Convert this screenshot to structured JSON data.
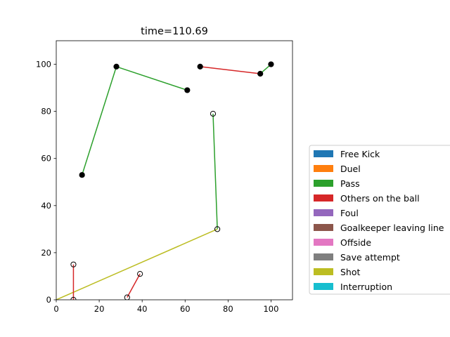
{
  "chart_data": {
    "type": "scatter",
    "title": "time=110.69",
    "xlabel": "",
    "ylabel": "",
    "xlim": [
      0,
      110
    ],
    "ylim": [
      0,
      110
    ],
    "xticks": [
      0,
      20,
      40,
      60,
      80,
      100
    ],
    "yticks": [
      0,
      20,
      40,
      60,
      80,
      100
    ],
    "grid": false,
    "legend_placement": "outside-right",
    "legend": [
      {
        "label": "Free Kick",
        "color": "#1f77b4"
      },
      {
        "label": "Duel",
        "color": "#ff7f0e"
      },
      {
        "label": "Pass",
        "color": "#2ca02c"
      },
      {
        "label": "Others on the ball",
        "color": "#d62728"
      },
      {
        "label": "Foul",
        "color": "#9467bd"
      },
      {
        "label": "Goalkeeper leaving line",
        "color": "#8c564b"
      },
      {
        "label": "Offside",
        "color": "#e377c2"
      },
      {
        "label": "Save attempt",
        "color": "#7f7f7f"
      },
      {
        "label": "Shot",
        "color": "#bcbd22"
      },
      {
        "label": "Interruption",
        "color": "#17becf"
      }
    ],
    "segments": [
      {
        "event": "Pass",
        "color": "#2ca02c",
        "from": [
          12,
          53
        ],
        "to": [
          28,
          99
        ]
      },
      {
        "event": "Pass",
        "color": "#2ca02c",
        "from": [
          28,
          99
        ],
        "to": [
          61,
          89
        ]
      },
      {
        "event": "Others on the ball",
        "color": "#d62728",
        "from": [
          67,
          99
        ],
        "to": [
          95,
          96
        ]
      },
      {
        "event": "Pass",
        "color": "#2ca02c",
        "from": [
          95,
          96
        ],
        "to": [
          100,
          100
        ]
      },
      {
        "event": "Pass",
        "color": "#2ca02c",
        "from": [
          73,
          79
        ],
        "to": [
          75,
          30
        ]
      },
      {
        "event": "Shot",
        "color": "#bcbd22",
        "from": [
          75,
          30
        ],
        "to": [
          0,
          0
        ]
      },
      {
        "event": "Others on the ball",
        "color": "#d62728",
        "from": [
          8,
          15
        ],
        "to": [
          8,
          0
        ]
      },
      {
        "event": "Others on the ball",
        "color": "#d62728",
        "from": [
          33,
          1
        ],
        "to": [
          39,
          11
        ]
      }
    ],
    "points": [
      {
        "team": "filled",
        "x": 12,
        "y": 53
      },
      {
        "team": "filled",
        "x": 28,
        "y": 99
      },
      {
        "team": "filled",
        "x": 61,
        "y": 89
      },
      {
        "team": "filled",
        "x": 67,
        "y": 99
      },
      {
        "team": "filled",
        "x": 95,
        "y": 96
      },
      {
        "team": "filled",
        "x": 100,
        "y": 100
      },
      {
        "team": "hollow",
        "x": 73,
        "y": 79
      },
      {
        "team": "hollow",
        "x": 75,
        "y": 30
      },
      {
        "team": "hollow",
        "x": 8,
        "y": 15
      },
      {
        "team": "hollow",
        "x": 8,
        "y": 0
      },
      {
        "team": "hollow",
        "x": 33,
        "y": 1
      },
      {
        "team": "hollow",
        "x": 39,
        "y": 11
      }
    ]
  }
}
